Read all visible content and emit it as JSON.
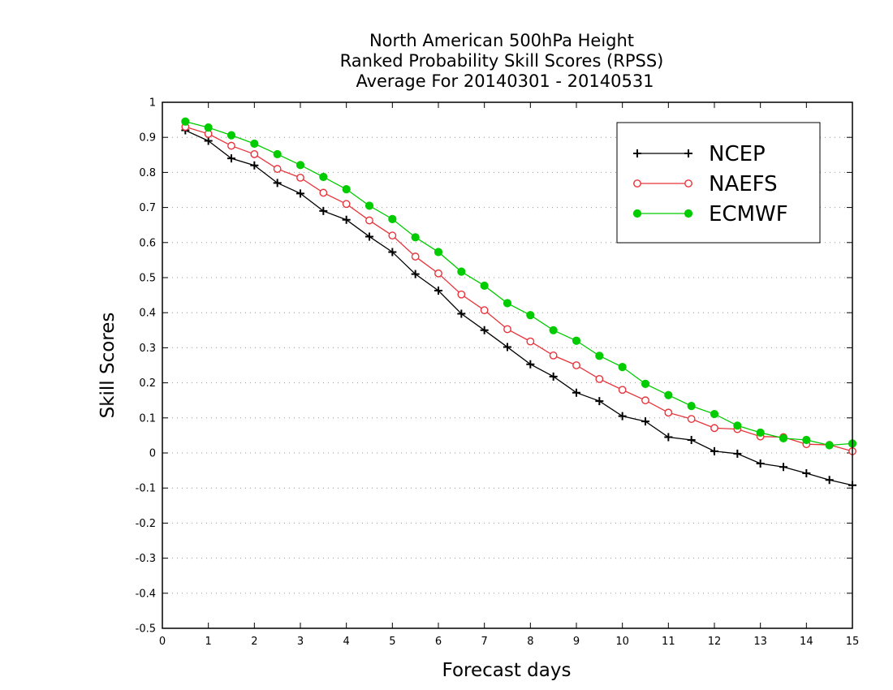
{
  "chart_data": {
    "type": "line",
    "title": [
      "North American 500hPa Height",
      "Ranked Probability Skill Scores (RPSS)",
      "Average For 20140301 - 20140531"
    ],
    "xlabel": "Forecast days",
    "ylabel": "Skill Scores",
    "xlim": [
      0,
      15
    ],
    "ylim": [
      -0.5,
      1
    ],
    "xticks": [
      "0",
      "1",
      "2",
      "3",
      "4",
      "5",
      "6",
      "7",
      "8",
      "9",
      "10",
      "11",
      "12",
      "13",
      "14",
      "15"
    ],
    "yticks": [
      "1",
      "0.9",
      "0.8",
      "0.7",
      "0.6",
      "0.5",
      "0.4",
      "0.3",
      "0.2",
      "0.1",
      "0",
      "-0.1",
      "-0.2",
      "-0.3",
      "-0.4",
      "-0.5"
    ],
    "grid": "horizontal dotted",
    "legend_position": "top-right",
    "x": [
      0.5,
      1,
      1.5,
      2,
      2.5,
      3,
      3.5,
      4,
      4.5,
      5,
      5.5,
      6,
      6.5,
      7,
      7.5,
      8,
      8.5,
      9,
      9.5,
      10,
      10.5,
      11,
      11.5,
      12,
      12.5,
      13,
      13.5,
      14,
      14.5,
      15
    ],
    "series": [
      {
        "name": "NCEP",
        "color": "#000000",
        "marker": "plus",
        "values": [
          0.92,
          0.89,
          0.84,
          0.82,
          0.77,
          0.74,
          0.69,
          0.665,
          0.617,
          0.573,
          0.51,
          0.463,
          0.397,
          0.35,
          0.302,
          0.253,
          0.218,
          0.172,
          0.148,
          0.105,
          0.09,
          0.045,
          0.037,
          0.005,
          -0.002,
          -0.03,
          -0.04,
          -0.058,
          -0.077,
          -0.092
        ]
      },
      {
        "name": "NAEFS",
        "color": "#e8333a",
        "marker": "open-circle",
        "values": [
          0.93,
          0.91,
          0.876,
          0.852,
          0.81,
          0.785,
          0.742,
          0.71,
          0.663,
          0.62,
          0.56,
          0.512,
          0.452,
          0.407,
          0.353,
          0.318,
          0.278,
          0.25,
          0.211,
          0.18,
          0.15,
          0.115,
          0.097,
          0.071,
          0.068,
          0.047,
          0.045,
          0.025,
          0.023,
          0.005
        ]
      },
      {
        "name": "ECMWF",
        "color": "#00cc00",
        "marker": "filled-circle",
        "values": [
          0.945,
          0.928,
          0.906,
          0.882,
          0.852,
          0.821,
          0.787,
          0.752,
          0.705,
          0.667,
          0.615,
          0.573,
          0.517,
          0.477,
          0.427,
          0.393,
          0.35,
          0.32,
          0.277,
          0.245,
          0.197,
          0.165,
          0.134,
          0.111,
          0.078,
          0.058,
          0.042,
          0.037,
          0.022,
          0.027
        ]
      }
    ]
  }
}
